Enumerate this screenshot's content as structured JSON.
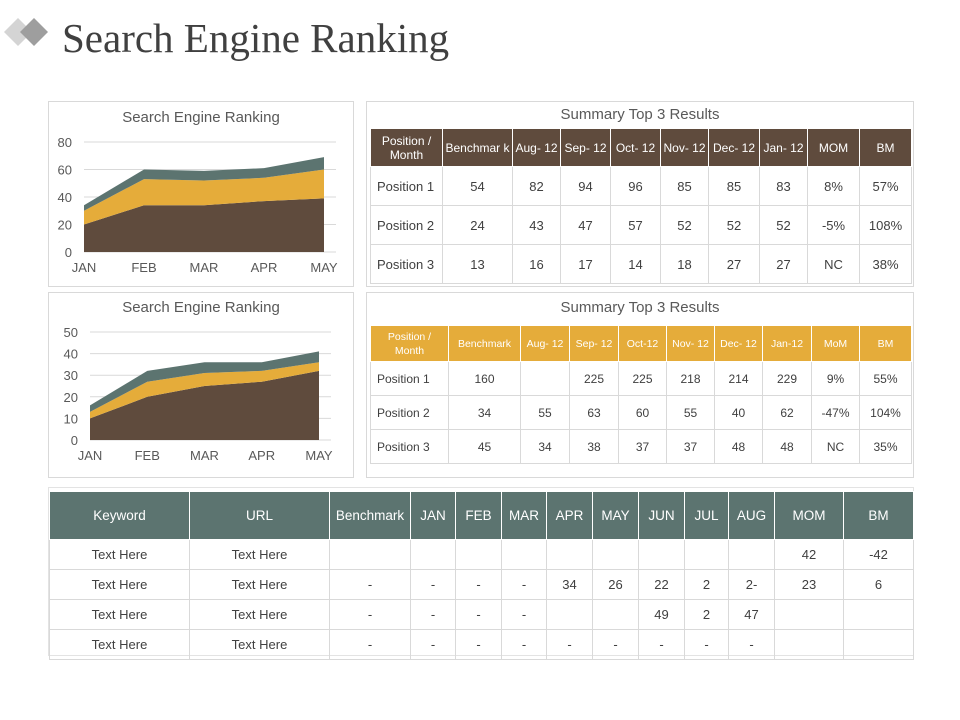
{
  "page": {
    "title": "Search Engine Ranking"
  },
  "colors": {
    "dark_brown": "#5f4b3d",
    "gold": "#e5ac3a",
    "slate_green": "#5c7470",
    "logo_grey": "#9e9e9e"
  },
  "chart_data": [
    {
      "type": "area",
      "title": "Search Engine Ranking",
      "categories": [
        "JAN",
        "FEB",
        "MAR",
        "APR",
        "MAY"
      ],
      "stacked": true,
      "ylim": [
        0,
        80
      ],
      "yticks": [
        "80",
        "60",
        "40",
        "20",
        "0"
      ],
      "grid": true,
      "series": [
        {
          "values": [
            20,
            34,
            34,
            37,
            39
          ],
          "color": "#5f4b3d"
        },
        {
          "values": [
            10,
            19,
            18,
            17,
            21
          ],
          "color": "#e5ac3a"
        },
        {
          "values": [
            4,
            7,
            7,
            7,
            9
          ],
          "color": "#5c7470"
        }
      ]
    },
    {
      "type": "area",
      "title": "Search Engine Ranking",
      "categories": [
        "JAN",
        "FEB",
        "MAR",
        "APR",
        "MAY"
      ],
      "stacked": true,
      "ylim": [
        0,
        50
      ],
      "yticks": [
        "50",
        "40",
        "30",
        "20",
        "10",
        "0"
      ],
      "grid": true,
      "series": [
        {
          "values": [
            10,
            20,
            25,
            27,
            32
          ],
          "color": "#5f4b3d"
        },
        {
          "values": [
            3,
            7,
            6,
            5,
            4
          ],
          "color": "#e5ac3a"
        },
        {
          "values": [
            3,
            5,
            5,
            4,
            5
          ],
          "color": "#5c7470"
        }
      ]
    }
  ],
  "summary1": {
    "title": "Summary Top 3 Results",
    "headers": [
      "Position / Month",
      "Benchmar k",
      "Aug- 12",
      "Sep- 12",
      "Oct- 12",
      "Nov- 12",
      "Dec- 12",
      "Jan- 12",
      "MOM",
      "BM"
    ],
    "rows": [
      [
        "Position 1",
        "54",
        "82",
        "94",
        "96",
        "85",
        "85",
        "83",
        "8%",
        "57%"
      ],
      [
        "Position 2",
        "24",
        "43",
        "47",
        "57",
        "52",
        "52",
        "52",
        "-5%",
        "108%"
      ],
      [
        "Position 3",
        "13",
        "16",
        "17",
        "14",
        "18",
        "27",
        "27",
        "NC",
        "38%"
      ]
    ]
  },
  "summary2": {
    "title": "Summary Top 3 Results",
    "headers": [
      "Position / Month",
      "Benchmark",
      "Aug- 12",
      "Sep- 12",
      "Oct-12",
      "Nov- 12",
      "Dec- 12",
      "Jan-12",
      "MoM",
      "BM"
    ],
    "rows": [
      [
        "Position 1",
        "160",
        "",
        "225",
        "225",
        "218",
        "214",
        "229",
        "9%",
        "55%"
      ],
      [
        "Position 2",
        "34",
        "55",
        "63",
        "60",
        "55",
        "40",
        "62",
        "-47%",
        "104%"
      ],
      [
        "Position 3",
        "45",
        "34",
        "38",
        "37",
        "37",
        "48",
        "48",
        "NC",
        "35%"
      ]
    ]
  },
  "keywords": {
    "headers": [
      "Keyword",
      "URL",
      "Benchmark",
      "JAN",
      "FEB",
      "MAR",
      "APR",
      "MAY",
      "JUN",
      "JUL",
      "AUG",
      "MOM",
      "BM"
    ],
    "rows": [
      [
        "Text Here",
        "Text Here",
        "",
        "",
        "",
        "",
        "",
        "",
        "",
        "",
        "",
        "42",
        "-42"
      ],
      [
        "Text Here",
        "Text Here",
        "-",
        "-",
        "-",
        "-",
        "34",
        "26",
        "22",
        "2",
        "2-",
        "23",
        "6"
      ],
      [
        "Text Here",
        "Text Here",
        "-",
        "-",
        "-",
        "-",
        "",
        "",
        "49",
        "2",
        "47",
        "",
        ""
      ],
      [
        "Text Here",
        "Text Here",
        "-",
        "-",
        "-",
        "-",
        "-",
        "-",
        "-",
        "-",
        "-",
        "",
        ""
      ]
    ]
  }
}
